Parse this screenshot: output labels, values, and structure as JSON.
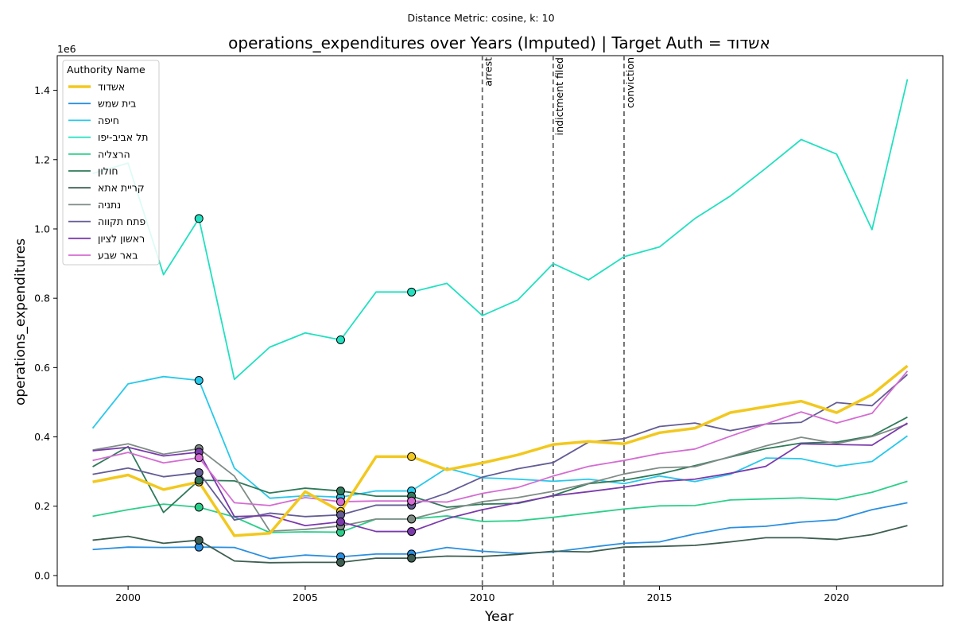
{
  "chart_data": {
    "type": "line",
    "suptitle": "Distance Metric: cosine, k: 10",
    "title": "operations_expenditures over Years (Imputed) | Target Auth = אשדוד",
    "xlabel": "Year",
    "ylabel": "operations_expenditures",
    "y_offset_label": "1e6",
    "xlim": [
      1998,
      2023
    ],
    "ylim": [
      -0.03,
      1.5
    ],
    "x_ticks": [
      2000,
      2005,
      2010,
      2015,
      2020
    ],
    "x_tick_labels": [
      "2000",
      "2005",
      "2010",
      "2015",
      "2020"
    ],
    "y_ticks": [
      0.0,
      0.2,
      0.4,
      0.6,
      0.8,
      1.0,
      1.2,
      1.4
    ],
    "y_tick_labels": [
      "0.0",
      "0.2",
      "0.4",
      "0.6",
      "0.8",
      "1.0",
      "1.2",
      "1.4"
    ],
    "grid": false,
    "legend": {
      "title": "Authority Name",
      "position": "top-left"
    },
    "x": [
      1999,
      2000,
      2001,
      2002,
      2003,
      2004,
      2005,
      2006,
      2007,
      2008,
      2009,
      2010,
      2011,
      2012,
      2013,
      2014,
      2015,
      2016,
      2017,
      2018,
      2019,
      2020,
      2021,
      2022
    ],
    "events": [
      {
        "x": 2010,
        "label": "arrest"
      },
      {
        "x": 2012,
        "label": "indictment filed"
      },
      {
        "x": 2014,
        "label": "conviction"
      }
    ],
    "series": [
      {
        "name": "אשדוד",
        "color": "#f2c81e",
        "target": true,
        "values": [
          0.27,
          0.29,
          0.248,
          0.27,
          0.115,
          0.122,
          0.242,
          0.185,
          0.343,
          0.343,
          0.305,
          0.325,
          0.348,
          0.378,
          0.387,
          0.38,
          0.412,
          0.425,
          0.47,
          0.487,
          0.503,
          0.47,
          0.522,
          0.605
        ],
        "imputed_years": [
          2002,
          2006,
          2008
        ]
      },
      {
        "name": "בית שמש",
        "color": "#2a8fe0",
        "values": [
          0.075,
          0.082,
          0.081,
          0.082,
          0.081,
          0.049,
          0.059,
          0.054,
          0.062,
          0.062,
          0.081,
          0.07,
          0.064,
          0.068,
          0.081,
          0.093,
          0.097,
          0.12,
          0.138,
          0.142,
          0.154,
          0.161,
          0.19,
          0.21
        ],
        "imputed_years": [
          2002,
          2006,
          2008
        ]
      },
      {
        "name": "חיפה",
        "color": "#28c8ea",
        "values": [
          0.425,
          0.553,
          0.574,
          0.563,
          0.31,
          0.223,
          0.23,
          0.226,
          0.244,
          0.244,
          0.31,
          0.282,
          0.278,
          0.272,
          0.278,
          0.265,
          0.287,
          0.271,
          0.292,
          0.339,
          0.337,
          0.315,
          0.329,
          0.403
        ],
        "imputed_years": [
          2002,
          2006,
          2008
        ]
      },
      {
        "name": "תל אביב-יפו",
        "color": "#22e0c0",
        "values": [
          1.16,
          1.19,
          0.868,
          1.03,
          0.566,
          0.659,
          0.7,
          0.68,
          0.818,
          0.818,
          0.843,
          0.75,
          0.795,
          0.9,
          0.853,
          0.92,
          0.948,
          1.03,
          1.095,
          1.175,
          1.258,
          1.216,
          0.998,
          1.432
        ],
        "imputed_years": [
          2002,
          2006,
          2008
        ]
      },
      {
        "name": "הרצליה",
        "color": "#2ccf8a",
        "values": [
          0.171,
          0.19,
          0.206,
          0.197,
          0.169,
          0.124,
          0.126,
          0.125,
          0.163,
          0.163,
          0.172,
          0.156,
          0.158,
          0.168,
          0.18,
          0.192,
          0.201,
          0.202,
          0.218,
          0.221,
          0.224,
          0.219,
          0.24,
          0.272
        ],
        "imputed_years": [
          2002,
          2006,
          2008
        ]
      },
      {
        "name": "חולון",
        "color": "#2f7a5a",
        "values": [
          0.314,
          0.372,
          0.182,
          0.275,
          0.273,
          0.238,
          0.252,
          0.244,
          0.229,
          0.229,
          0.197,
          0.206,
          0.208,
          0.231,
          0.265,
          0.275,
          0.293,
          0.317,
          0.342,
          0.366,
          0.382,
          0.385,
          0.403,
          0.457
        ],
        "imputed_years": [
          2002,
          2006,
          2008
        ]
      },
      {
        "name": "קריית אתא",
        "color": "#3d5e50",
        "values": [
          0.102,
          0.113,
          0.093,
          0.102,
          0.042,
          0.037,
          0.038,
          0.038,
          0.05,
          0.05,
          0.056,
          0.055,
          0.061,
          0.07,
          0.068,
          0.082,
          0.084,
          0.087,
          0.097,
          0.109,
          0.109,
          0.104,
          0.118,
          0.144
        ],
        "imputed_years": [
          2002,
          2006,
          2008
        ]
      },
      {
        "name": "נתניה",
        "color": "#7f8c86",
        "values": [
          0.362,
          0.38,
          0.35,
          0.366,
          0.287,
          0.128,
          0.133,
          0.143,
          0.163,
          0.163,
          0.189,
          0.213,
          0.225,
          0.243,
          0.266,
          0.293,
          0.311,
          0.314,
          0.343,
          0.374,
          0.399,
          0.381,
          0.401,
          0.437
        ],
        "imputed_years": [
          2002,
          2006,
          2008
        ]
      },
      {
        "name": "פתח תקווה",
        "color": "#635c95",
        "values": [
          0.292,
          0.31,
          0.285,
          0.297,
          0.16,
          0.18,
          0.17,
          0.175,
          0.203,
          0.203,
          0.238,
          0.284,
          0.308,
          0.326,
          0.385,
          0.395,
          0.43,
          0.44,
          0.418,
          0.437,
          0.442,
          0.499,
          0.49,
          0.58
        ],
        "imputed_years": [
          2002,
          2006,
          2008
        ]
      },
      {
        "name": "ראשון לציון",
        "color": "#7b3aac",
        "values": [
          0.36,
          0.37,
          0.345,
          0.356,
          0.17,
          0.173,
          0.144,
          0.155,
          0.127,
          0.127,
          0.164,
          0.19,
          0.21,
          0.23,
          0.242,
          0.255,
          0.271,
          0.278,
          0.295,
          0.315,
          0.38,
          0.378,
          0.376,
          0.44
        ],
        "imputed_years": [
          2002,
          2006,
          2008
        ]
      },
      {
        "name": "באר שבע",
        "color": "#d46cd2",
        "values": [
          0.332,
          0.355,
          0.325,
          0.34,
          0.21,
          0.202,
          0.225,
          0.213,
          0.215,
          0.215,
          0.212,
          0.237,
          0.254,
          0.287,
          0.315,
          0.332,
          0.352,
          0.365,
          0.402,
          0.437,
          0.472,
          0.44,
          0.468,
          0.59
        ],
        "imputed_years": [
          2002,
          2006,
          2008
        ]
      }
    ]
  }
}
